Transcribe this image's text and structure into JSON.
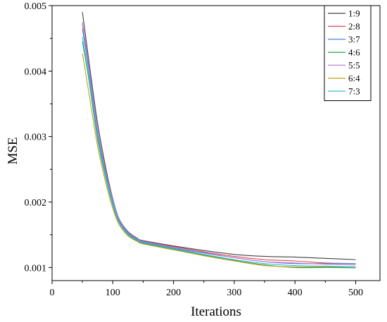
{
  "chart_data": {
    "type": "line",
    "xlabel": "Iterations",
    "ylabel": "MSE",
    "xlim": [
      0,
      540
    ],
    "ylim": [
      0.0008,
      0.005
    ],
    "x_ticks": [
      0,
      100,
      200,
      300,
      400,
      500
    ],
    "x_tick_labels": [
      "0",
      "100",
      "200",
      "300",
      "400",
      "500"
    ],
    "y_ticks": [
      0.001,
      0.002,
      0.003,
      0.004,
      0.005
    ],
    "y_tick_labels": [
      "0.001",
      "0.002",
      "0.003",
      "0.004",
      "0.005"
    ],
    "grid": false,
    "legend_position": "top-right",
    "x": [
      50,
      60,
      75,
      90,
      100,
      110,
      125,
      140,
      150,
      200,
      250,
      300,
      350,
      400,
      450,
      500
    ],
    "series": [
      {
        "name": "1:9",
        "color": "#404040",
        "values": [
          0.0049,
          0.0042,
          0.0032,
          0.00245,
          0.00205,
          0.00175,
          0.00155,
          0.00145,
          0.00141,
          0.00133,
          0.00126,
          0.0012,
          0.00117,
          0.00116,
          0.00114,
          0.00112
        ]
      },
      {
        "name": "2:8",
        "color": "#e34a4a",
        "values": [
          0.00472,
          0.0041,
          0.0031,
          0.0024,
          0.00202,
          0.00173,
          0.00153,
          0.00144,
          0.0014,
          0.00132,
          0.00124,
          0.00117,
          0.00112,
          0.0011,
          0.00107,
          0.00106
        ]
      },
      {
        "name": "3:7",
        "color": "#3f7fdc",
        "values": [
          0.00465,
          0.00405,
          0.00305,
          0.00237,
          0.002,
          0.00172,
          0.00152,
          0.00143,
          0.00139,
          0.0013,
          0.00122,
          0.00115,
          0.00109,
          0.00106,
          0.00106,
          0.00106
        ]
      },
      {
        "name": "4:6",
        "color": "#27a54e",
        "values": [
          0.00445,
          0.0039,
          0.00295,
          0.0023,
          0.00195,
          0.00169,
          0.0015,
          0.00141,
          0.00137,
          0.00128,
          0.00119,
          0.00111,
          0.00104,
          0.001,
          0.001,
          0.000995
        ]
      },
      {
        "name": "5:5",
        "color": "#c07ad8",
        "values": [
          0.00475,
          0.00412,
          0.0031,
          0.0024,
          0.00203,
          0.00174,
          0.00154,
          0.00144,
          0.0014,
          0.00131,
          0.00123,
          0.00115,
          0.00109,
          0.00107,
          0.00105,
          0.00104
        ]
      },
      {
        "name": "6:4",
        "color": "#c8a01c",
        "values": [
          0.00427,
          0.0037,
          0.00285,
          0.00223,
          0.0019,
          0.00166,
          0.00148,
          0.0014,
          0.00136,
          0.00127,
          0.00118,
          0.0011,
          0.00103,
          0.00101,
          0.00101,
          0.00101
        ]
      },
      {
        "name": "7:3",
        "color": "#29c0d4",
        "values": [
          0.00452,
          0.00395,
          0.003,
          0.00233,
          0.00197,
          0.0017,
          0.00151,
          0.00142,
          0.00138,
          0.00129,
          0.0012,
          0.00112,
          0.00106,
          0.00103,
          0.00102,
          0.00101
        ]
      }
    ]
  }
}
